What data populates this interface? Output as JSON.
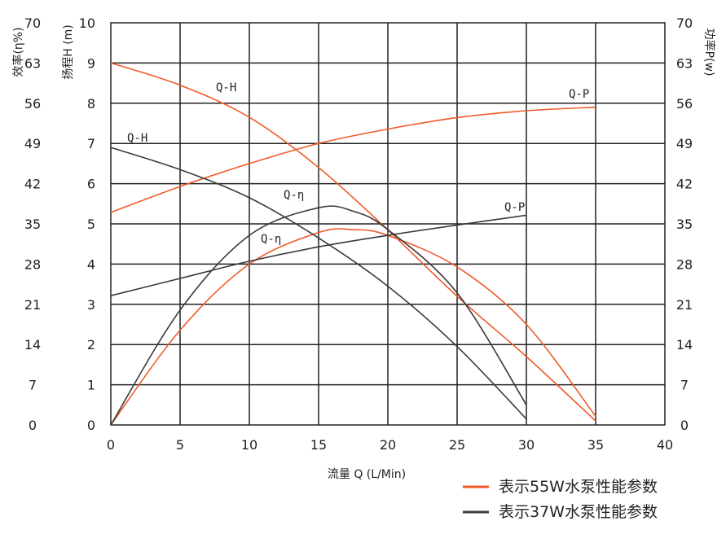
{
  "chart_data": {
    "type": "line",
    "xlabel": "流量 Q (L/Min)",
    "ylabel_left_outer": "效率(η%)",
    "ylabel_left_inner": "扬程H (m)",
    "ylabel_right": "功率P(w)",
    "xlim": [
      0,
      40
    ],
    "xticks": [
      "0",
      "5",
      "10",
      "15",
      "20",
      "25",
      "30",
      "35",
      "40"
    ],
    "ylim_head": [
      0,
      10
    ],
    "yticks_head": [
      "0",
      "1",
      "2",
      "3",
      "4",
      "5",
      "6",
      "7",
      "8",
      "9",
      "10"
    ],
    "ylim_efficiency": [
      0,
      70
    ],
    "yticks_efficiency": [
      "0",
      "7",
      "14",
      "21",
      "28",
      "35",
      "42",
      "49",
      "56",
      "63",
      "70"
    ],
    "ylim_power": [
      0,
      70
    ],
    "yticks_power": [
      "0",
      "7",
      "14",
      "21",
      "28",
      "35",
      "42",
      "49",
      "56",
      "63",
      "70"
    ],
    "grid": true,
    "legend_position": "bottom-right",
    "series": [
      {
        "name": "表示55W水泵性能参数",
        "color": "#f05a28",
        "curves": [
          {
            "label": "Q-H",
            "axis": "head",
            "x": [
              0,
              5,
              10,
              15,
              20,
              25,
              30,
              35
            ],
            "y": [
              9.0,
              8.45,
              7.65,
              6.4,
              4.85,
              3.2,
              1.7,
              0.1
            ]
          },
          {
            "label": "Q-P",
            "axis": "power",
            "x": [
              0,
              5,
              10,
              15,
              20,
              25,
              30,
              35
            ],
            "y": [
              37,
              41.5,
              45.5,
              49,
              51.5,
              53.5,
              54.7,
              55.3
            ]
          },
          {
            "label": "Q-η",
            "axis": "efficiency",
            "x": [
              0,
              5,
              10,
              15,
              17.5,
              20,
              25,
              30,
              35
            ],
            "y": [
              0,
              16.5,
              28,
              33.5,
              34,
              33,
              27.5,
              17.5,
              1.5
            ]
          }
        ]
      },
      {
        "name": "表示37W水泵性能参数",
        "color": "#3a3a3a",
        "curves": [
          {
            "label": "Q-H",
            "axis": "head",
            "x": [
              0,
              5,
              10,
              15,
              20,
              25,
              30
            ],
            "y": [
              6.9,
              6.35,
              5.65,
              4.65,
              3.45,
              1.95,
              0.15
            ]
          },
          {
            "label": "Q-P",
            "axis": "power",
            "x": [
              0,
              5,
              10,
              15,
              20,
              25,
              30
            ],
            "y": [
              22.5,
              25.5,
              28.5,
              31,
              33,
              34.8,
              36.5
            ]
          },
          {
            "label": "Q-η",
            "axis": "efficiency",
            "x": [
              0,
              5,
              10,
              15,
              17.5,
              20,
              25,
              30
            ],
            "y": [
              0,
              20,
              33,
              37.8,
              37.2,
              34,
              23,
              3.5
            ]
          }
        ]
      }
    ]
  }
}
